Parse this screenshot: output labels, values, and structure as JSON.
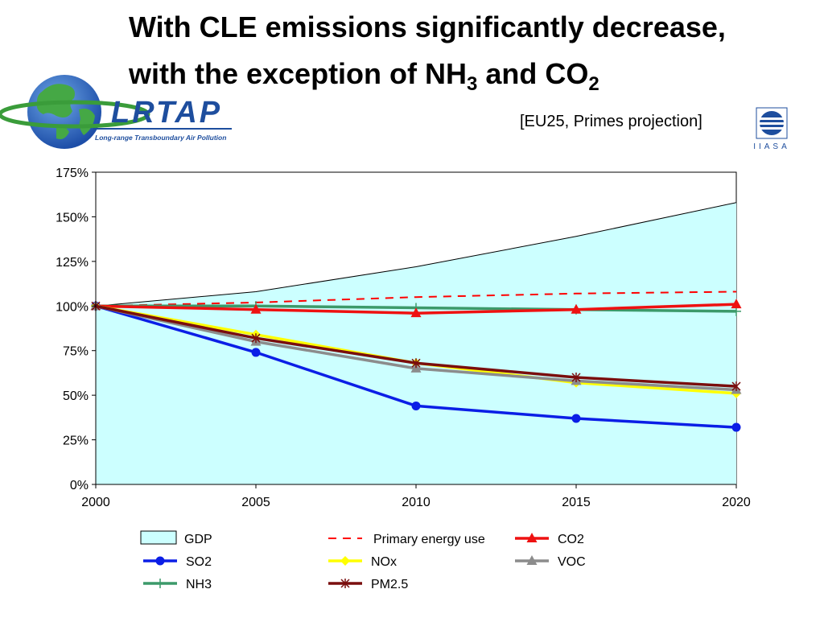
{
  "title": {
    "line1": "With CLE emissions significantly decrease,",
    "line2_pre": "with the exception of NH",
    "line2_sub1": "3",
    "line2_mid": " and CO",
    "line2_sub2": "2"
  },
  "subtitle": "[EU25, Primes projection]",
  "logos": {
    "lrtap_text": "LRTAP",
    "lrtap_tagline": "Long-range Transboundary Air Pollution",
    "iiasa_text": "IIASA"
  },
  "colors": {
    "gdp_fill": "#ccffff",
    "primary_energy": "#ff0000",
    "co2": "#ee1111",
    "so2": "#0b1ee6",
    "nox": "#ffff00",
    "voc": "#8c8c8c",
    "nh3": "#3c9a6a",
    "pm25": "#7a0e0e",
    "title_green": "#2d9a52",
    "logo_blue": "#1e4e9e"
  },
  "chart_data": {
    "type": "line",
    "x": [
      2000,
      2005,
      2010,
      2015,
      2020
    ],
    "x_tick_labels": [
      "2000",
      "2005",
      "2010",
      "2015",
      "2020"
    ],
    "ylim": [
      0,
      175
    ],
    "y_ticks": [
      0,
      25,
      50,
      75,
      100,
      125,
      150,
      175
    ],
    "y_tick_labels": [
      "0%",
      "25%",
      "50%",
      "75%",
      "100%",
      "125%",
      "150%",
      "175%"
    ],
    "unit": "%",
    "grid": false,
    "legend_position": "bottom",
    "series": [
      {
        "name": "GDP",
        "type": "area",
        "values": [
          100,
          108,
          122,
          139,
          158
        ],
        "color": "#ccffff"
      },
      {
        "name": "Primary energy use",
        "type": "dashed",
        "values": [
          100,
          102,
          105,
          107,
          108
        ],
        "color": "#ff0000"
      },
      {
        "name": "CO2",
        "marker": "triangle",
        "values": [
          100,
          98,
          96,
          98,
          101
        ],
        "color": "#ee1111"
      },
      {
        "name": "SO2",
        "marker": "circle",
        "values": [
          100,
          74,
          44,
          37,
          32
        ],
        "color": "#0b1ee6"
      },
      {
        "name": "NOx",
        "marker": "diamond",
        "values": [
          100,
          84,
          68,
          57,
          51
        ],
        "color": "#ffff00"
      },
      {
        "name": "VOC",
        "marker": "triangle",
        "values": [
          100,
          80,
          65,
          58,
          53
        ],
        "color": "#8c8c8c"
      },
      {
        "name": "NH3",
        "marker": "plus",
        "values": [
          100,
          100,
          99,
          98,
          97
        ],
        "color": "#3c9a6a"
      },
      {
        "name": "PM2.5",
        "marker": "asterisk",
        "values": [
          100,
          82,
          68,
          60,
          55
        ],
        "color": "#7a0e0e"
      }
    ]
  }
}
